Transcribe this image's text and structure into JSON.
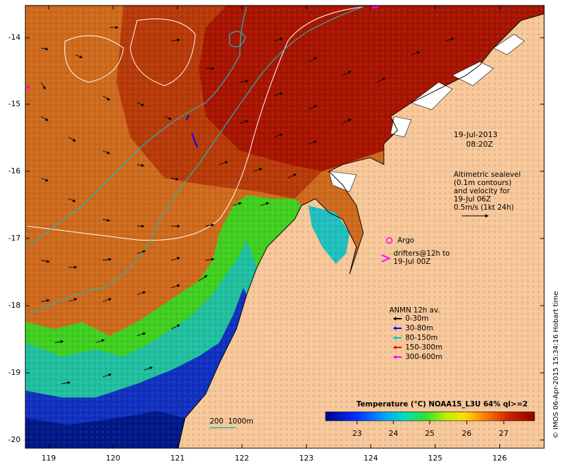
{
  "map": {
    "lat_ticks": [
      "-14",
      "-15",
      "-16",
      "-17",
      "-18",
      "-19",
      "-20"
    ],
    "lon_ticks": [
      "119",
      "120",
      "121",
      "122",
      "123",
      "124",
      "125",
      "126"
    ],
    "datetime": {
      "date": "19-Jul-2013",
      "time": "08:20Z"
    },
    "altimetry_note": [
      "Altimetric sealevel",
      "(0.1m contours)",
      "and velocity for",
      "19-Jul 06Z",
      "0.5m/s (1kt 24h)"
    ],
    "argo_label": "Argo",
    "drifter_note": [
      "drifters@12h to",
      "19-Jul 00Z"
    ],
    "anmn": {
      "title": "ANMN 12h av.",
      "items": [
        {
          "label": "0-30m",
          "color": "#000000"
        },
        {
          "label": "30-80m",
          "color": "#0000ff"
        },
        {
          "label": "80-150m",
          "color": "#00c8c8"
        },
        {
          "label": "150-300m",
          "color": "#ff0000"
        },
        {
          "label": "300-600m",
          "color": "#ff00ff"
        }
      ]
    },
    "bathymetry_label": "200  1000m",
    "colorbar": {
      "title": "Temperature (°C) NOAA15_L3U 64% ql>=2",
      "ticks": [
        "23",
        "24",
        "25",
        "26",
        "27"
      ]
    },
    "credit": "© IMOS 06-Apr-2015 15:34:16 Hobart time",
    "colors": {
      "land": "#f8c89a",
      "warm": "#a01000",
      "orange": "#d06010",
      "green": "#30d020",
      "cyan": "#20c0b0",
      "blue": "#0010a0",
      "argo": "#ff00ff"
    }
  }
}
